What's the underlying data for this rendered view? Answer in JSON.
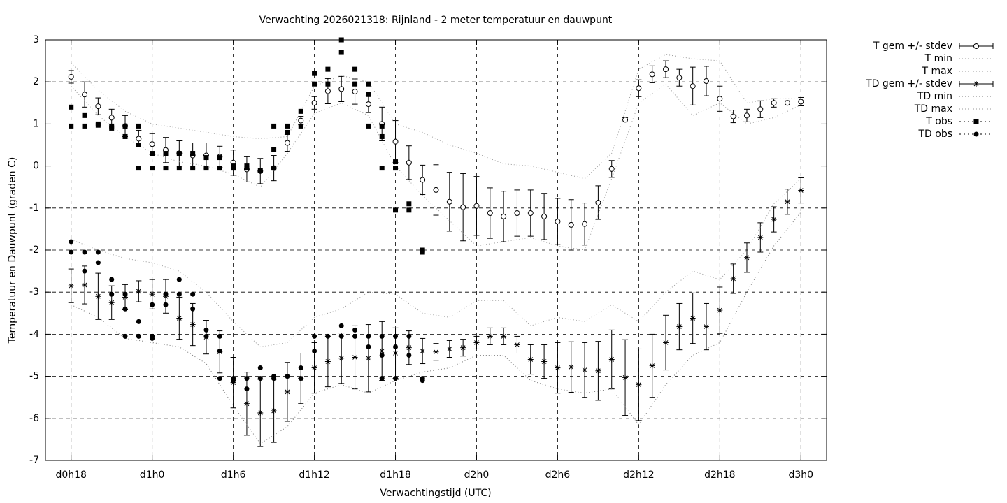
{
  "chart_data": {
    "type": "errorbar",
    "title": "Verwachting 2026021318: Rijnland - 2 meter temperatuur en dauwpunt",
    "x_label": "Verwachtingstijd (UTC)",
    "y_label": "Temperatuur en Dauwpunt (graden C)",
    "xlim": [
      16.1,
      73.9
    ],
    "ylim": [
      -7,
      3
    ],
    "xticks": [
      {
        "value": 18,
        "label": "d0h18"
      },
      {
        "value": 24,
        "label": "d1h0"
      },
      {
        "value": 30,
        "label": "d1h6"
      },
      {
        "value": 36,
        "label": "d1h12"
      },
      {
        "value": 42,
        "label": "d1h18"
      },
      {
        "value": 48,
        "label": "d2h0"
      },
      {
        "value": 54,
        "label": "d2h6"
      },
      {
        "value": 60,
        "label": "d2h12"
      },
      {
        "value": 66,
        "label": "d2h18"
      },
      {
        "value": 72,
        "label": "d3h0"
      }
    ],
    "yticks": [
      -7,
      -6,
      -5,
      -4,
      -3,
      -2,
      -1,
      0,
      1,
      2,
      3
    ],
    "grid": true,
    "legend_position": "outside-right",
    "series": [
      {
        "name": "T gem +/- stdev",
        "kind": "errorbar",
        "marker": "open-circle",
        "color": "#000000",
        "x": [
          18,
          19,
          20,
          21,
          22,
          23,
          24,
          25,
          26,
          27,
          28,
          29,
          30,
          31,
          32,
          33,
          34,
          35,
          36,
          37,
          38,
          39,
          40,
          41,
          42,
          43,
          44,
          45,
          46,
          47,
          48,
          49,
          50,
          51,
          52,
          53,
          54,
          55,
          56,
          57,
          58,
          59,
          60,
          61,
          62,
          63,
          64,
          65,
          66,
          67,
          68,
          69,
          70,
          71,
          72
        ],
        "values": [
          2.12,
          1.7,
          1.42,
          1.15,
          0.95,
          0.65,
          0.52,
          0.38,
          0.3,
          0.25,
          0.25,
          0.22,
          0.08,
          -0.08,
          -0.12,
          -0.05,
          0.55,
          1.08,
          1.5,
          1.78,
          1.83,
          1.77,
          1.47,
          1.0,
          0.58,
          0.08,
          -0.33,
          -0.57,
          -0.85,
          -0.98,
          -0.95,
          -1.12,
          -1.2,
          -1.12,
          -1.12,
          -1.2,
          -1.32,
          -1.4,
          -1.38,
          -0.87,
          -0.07,
          1.1,
          1.85,
          2.18,
          2.3,
          2.1,
          1.9,
          2.02,
          1.6,
          1.18,
          1.2,
          1.35,
          1.5,
          1.5,
          1.53
        ],
        "errors": [
          0.15,
          0.3,
          0.2,
          0.2,
          0.25,
          0.2,
          0.25,
          0.3,
          0.3,
          0.3,
          0.3,
          0.25,
          0.3,
          0.3,
          0.3,
          0.3,
          0.2,
          0.1,
          0.15,
          0.3,
          0.3,
          0.3,
          0.2,
          0.4,
          0.5,
          0.4,
          0.35,
          0.6,
          0.7,
          0.8,
          0.7,
          0.6,
          0.6,
          0.55,
          0.55,
          0.55,
          0.55,
          0.6,
          0.5,
          0.4,
          0.2,
          0.05,
          0.2,
          0.2,
          0.2,
          0.2,
          0.45,
          0.35,
          0.3,
          0.15,
          0.15,
          0.2,
          0.1,
          0.05,
          0.1
        ]
      },
      {
        "name": "T min",
        "kind": "line",
        "color": "#999999",
        "x": [
          18,
          20,
          22,
          24,
          26,
          28,
          30,
          32,
          34,
          36,
          38,
          40,
          42,
          44,
          46,
          48,
          50,
          52,
          54,
          56,
          58,
          60,
          62,
          64,
          66,
          68,
          70,
          72
        ],
        "values": [
          1.9,
          1.2,
          0.7,
          0.3,
          0.1,
          0,
          -0.2,
          -0.5,
          0.3,
          1.25,
          1.5,
          1.2,
          0,
          -0.7,
          -1.3,
          -1.9,
          -1.8,
          -1.7,
          -1.9,
          -2.0,
          -0.3,
          1.5,
          1.95,
          1.2,
          1.5,
          1.0,
          1.15,
          1.45
        ]
      },
      {
        "name": "T max",
        "kind": "line",
        "color": "#999999",
        "x": [
          18,
          20,
          22,
          24,
          26,
          28,
          30,
          32,
          34,
          36,
          38,
          40,
          42,
          44,
          46,
          48,
          50,
          52,
          54,
          56,
          58,
          60,
          62,
          64,
          66,
          68,
          70,
          72
        ],
        "values": [
          2.45,
          1.8,
          1.3,
          1.0,
          0.9,
          0.8,
          0.7,
          0.65,
          0.7,
          1.9,
          2.15,
          2.0,
          1.0,
          0.8,
          0.5,
          0.3,
          0.05,
          0,
          -0.15,
          -0.3,
          0.3,
          2.3,
          2.65,
          2.55,
          2.5,
          1.5,
          1.6,
          1.6
        ]
      },
      {
        "name": "TD gem +/- stdev",
        "kind": "errorbar",
        "marker": "asterisk",
        "color": "#000000",
        "x": [
          18,
          19,
          20,
          21,
          22,
          23,
          24,
          25,
          26,
          27,
          28,
          29,
          30,
          31,
          32,
          33,
          34,
          35,
          36,
          37,
          38,
          39,
          40,
          41,
          42,
          43,
          44,
          45,
          46,
          47,
          48,
          49,
          50,
          51,
          52,
          53,
          54,
          55,
          56,
          57,
          58,
          59,
          60,
          61,
          62,
          63,
          64,
          65,
          66,
          67,
          68,
          69,
          70,
          71,
          72
        ],
        "values": [
          -2.85,
          -2.83,
          -3.1,
          -3.25,
          -3.12,
          -2.98,
          -3.05,
          -3.1,
          -3.62,
          -3.77,
          -4.07,
          -4.42,
          -5.15,
          -5.65,
          -5.87,
          -5.82,
          -5.37,
          -5.05,
          -4.8,
          -4.65,
          -4.57,
          -4.55,
          -4.57,
          -4.4,
          -4.45,
          -4.32,
          -4.4,
          -4.42,
          -4.35,
          -4.32,
          -4.2,
          -4.05,
          -4.05,
          -4.25,
          -4.6,
          -4.65,
          -4.8,
          -4.78,
          -4.85,
          -4.87,
          -4.6,
          -5.03,
          -5.2,
          -4.75,
          -4.2,
          -3.82,
          -3.62,
          -3.82,
          -3.43,
          -2.68,
          -2.18,
          -1.7,
          -1.27,
          -0.85,
          -0.58
        ],
        "errors": [
          0.4,
          0.45,
          0.55,
          0.4,
          0.3,
          0.25,
          0.35,
          0.4,
          0.5,
          0.5,
          0.4,
          0.5,
          0.6,
          0.75,
          0.8,
          0.75,
          0.7,
          0.6,
          0.6,
          0.6,
          0.6,
          0.75,
          0.8,
          0.7,
          0.6,
          0.4,
          0.3,
          0.2,
          0.2,
          0.2,
          0.15,
          0.2,
          0.2,
          0.2,
          0.35,
          0.4,
          0.6,
          0.6,
          0.65,
          0.7,
          0.7,
          0.9,
          0.85,
          0.75,
          0.65,
          0.55,
          0.6,
          0.55,
          0.55,
          0.35,
          0.35,
          0.35,
          0.3,
          0.3,
          0.3
        ]
      },
      {
        "name": "TD min",
        "kind": "line",
        "color": "#777777",
        "x": [
          18,
          20,
          22,
          24,
          26,
          28,
          30,
          32,
          34,
          36,
          38,
          40,
          42,
          44,
          46,
          48,
          50,
          52,
          54,
          56,
          58,
          60,
          62,
          64,
          66,
          68,
          70,
          72
        ],
        "values": [
          -3.3,
          -3.6,
          -4.1,
          -4.2,
          -4.3,
          -4.7,
          -5.7,
          -6.6,
          -6.2,
          -5.4,
          -5.2,
          -5.4,
          -5.1,
          -4.9,
          -4.8,
          -4.5,
          -4.5,
          -5.1,
          -5.3,
          -5.4,
          -5.3,
          -6.15,
          -5.2,
          -4.5,
          -4.2,
          -3.0,
          -1.9,
          -1.1
        ]
      },
      {
        "name": "TD max",
        "kind": "line",
        "color": "#999999",
        "x": [
          18,
          20,
          22,
          24,
          26,
          28,
          30,
          32,
          34,
          36,
          38,
          40,
          42,
          44,
          46,
          48,
          50,
          52,
          54,
          56,
          58,
          60,
          62,
          64,
          66,
          68,
          70,
          72
        ],
        "values": [
          -1.75,
          -2.0,
          -2.2,
          -2.3,
          -2.5,
          -3.0,
          -3.7,
          -4.3,
          -4.2,
          -3.6,
          -3.4,
          -3.0,
          -3.05,
          -3.5,
          -3.6,
          -3.2,
          -3.2,
          -3.8,
          -3.6,
          -3.7,
          -3.3,
          -3.7,
          -3.0,
          -2.5,
          -2.7,
          -2.0,
          -0.9,
          -0.3
        ]
      },
      {
        "name": "T obs",
        "kind": "scatter",
        "marker": "square",
        "color": "#000000",
        "x": [
          18,
          18,
          19,
          19,
          20,
          20,
          21,
          21,
          22,
          22,
          23,
          23,
          23,
          24,
          24,
          25,
          25,
          26,
          26,
          27,
          27,
          28,
          28,
          29,
          29,
          30,
          30,
          31,
          31,
          32,
          33,
          33,
          33,
          34,
          34,
          35,
          35,
          36,
          36,
          37,
          37,
          38,
          38,
          39,
          39,
          40,
          40,
          40,
          41,
          41,
          41,
          42,
          42,
          42,
          43,
          43,
          44,
          44
        ],
        "values": [
          1.4,
          0.95,
          1.2,
          0.95,
          1.0,
          0.97,
          0.95,
          0.9,
          0.95,
          0.7,
          0.95,
          0.5,
          -0.05,
          0.3,
          -0.05,
          0.3,
          -0.05,
          0.3,
          -0.05,
          0.3,
          -0.05,
          0.2,
          -0.05,
          0.2,
          -0.05,
          -0.05,
          0,
          -0.05,
          0,
          -0.1,
          -0.05,
          0.4,
          0.95,
          0.8,
          0.95,
          1.3,
          0.95,
          2.2,
          1.95,
          2.3,
          1.95,
          3.0,
          2.7,
          2.3,
          1.95,
          1.95,
          1.7,
          0.95,
          0.95,
          0.7,
          -0.05,
          0.1,
          -0.05,
          -1.05,
          -0.9,
          -1.05,
          -2.0,
          -2.05
        ]
      },
      {
        "name": "TD obs",
        "kind": "scatter",
        "marker": "dot",
        "color": "#000000",
        "x": [
          18,
          18,
          19,
          19,
          20,
          20,
          21,
          21,
          22,
          22,
          22,
          23,
          23,
          24,
          24,
          24,
          25,
          25,
          26,
          26,
          27,
          27,
          28,
          28,
          29,
          29,
          29,
          30,
          30,
          31,
          31,
          32,
          32,
          33,
          33,
          34,
          35,
          35,
          36,
          36,
          37,
          38,
          38,
          39,
          39,
          40,
          40,
          41,
          41,
          41,
          42,
          42,
          42,
          43,
          43,
          44,
          44
        ],
        "values": [
          -1.8,
          -2.05,
          -2.05,
          -2.5,
          -2.05,
          -2.3,
          -2.7,
          -3.05,
          -3.05,
          -3.4,
          -4.05,
          -3.7,
          -4.05,
          -4.05,
          -4.1,
          -3.3,
          -3.05,
          -3.3,
          -2.7,
          -3.05,
          -3.05,
          -3.4,
          -3.9,
          -4.05,
          -4.05,
          -4.4,
          -5.05,
          -5.05,
          -5.1,
          -5.05,
          -5.3,
          -4.8,
          -5.05,
          -5.0,
          -5.05,
          -5.0,
          -4.8,
          -5.05,
          -4.05,
          -4.4,
          -4.05,
          -3.8,
          -4.05,
          -3.9,
          -4.05,
          -4.05,
          -4.3,
          -4.05,
          -4.5,
          -5.05,
          -4.05,
          -4.3,
          -5.05,
          -4.05,
          -4.5,
          -5.05,
          -5.1
        ]
      }
    ]
  }
}
